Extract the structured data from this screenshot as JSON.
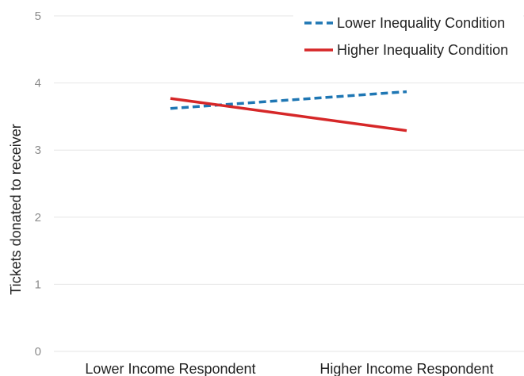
{
  "chart_data": {
    "type": "line",
    "title": "",
    "xlabel": "",
    "ylabel": "Tickets donated to receiver",
    "categories": [
      "Lower Income Respondent",
      "Higher Income Respondent"
    ],
    "yticks": [
      "0",
      "1",
      "2",
      "3",
      "4",
      "5"
    ],
    "ylim": [
      0,
      5
    ],
    "grid": true,
    "legend_position": "top-right",
    "series": [
      {
        "name": "Lower Inequality Condition",
        "values": [
          3.62,
          3.87
        ],
        "color": "#1f77b4",
        "style": "dashed"
      },
      {
        "name": "Higher Inequality Condition",
        "values": [
          3.77,
          3.29
        ],
        "color": "#d62728",
        "style": "solid"
      }
    ]
  }
}
